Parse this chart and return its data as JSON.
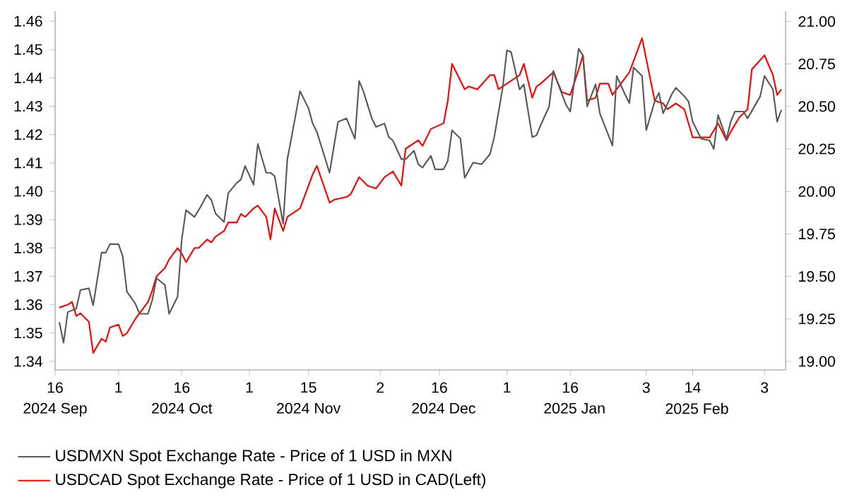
{
  "chart_data": {
    "type": "line",
    "legend": "bottom",
    "line_style": "solid",
    "xlim": [
      "2024-09-16",
      "2025-03-08"
    ],
    "xticks": [
      {
        "value": "2024-09-16",
        "label": "16"
      },
      {
        "value": "2024-10-01",
        "label": "1"
      },
      {
        "value": "2024-10-16",
        "label": "16"
      },
      {
        "value": "2024-11-01",
        "label": "1"
      },
      {
        "value": "2024-11-15",
        "label": "15"
      },
      {
        "value": "2024-12-02",
        "label": "2"
      },
      {
        "value": "2024-12-16",
        "label": "16"
      },
      {
        "value": "2025-01-01",
        "label": "1"
      },
      {
        "value": "2025-01-16",
        "label": "16"
      },
      {
        "value": "2025-02-03",
        "label": "3"
      },
      {
        "value": "2025-02-14",
        "label": "14"
      },
      {
        "value": "2025-03-03",
        "label": "3"
      }
    ],
    "x2lim": [
      "2024-09-16",
      "2025-03-08"
    ],
    "x2ticks": [
      {
        "value": "2024-09-16",
        "label": "2024 Sep"
      },
      {
        "value": "2024-10-16",
        "label": "2024 Oct"
      },
      {
        "value": "2024-11-15",
        "label": "2024 Nov"
      },
      {
        "value": "2024-12-17",
        "label": "2024 Dec"
      },
      {
        "value": "2025-01-17",
        "label": "2025 Jan"
      },
      {
        "value": "2025-02-15",
        "label": "2025 Feb"
      }
    ],
    "ylim": [
      1.337,
      1.4635
    ],
    "yticks": [
      1.34,
      1.35,
      1.36,
      1.37,
      1.38,
      1.39,
      {
        "value": 1.4,
        "label": "1.40"
      },
      1.41,
      1.42,
      1.43,
      1.44,
      1.45,
      1.46
    ],
    "y2lim": [
      18.95,
      21.06
    ],
    "y2ticks": [
      {
        "value": 19,
        "label": "19.00"
      },
      19.25,
      {
        "value": 19.5,
        "label": "19.50"
      },
      19.75,
      {
        "value": 20,
        "label": "20.00"
      },
      20.25,
      {
        "value": 20.5,
        "label": "20.50"
      },
      20.75,
      {
        "value": 21,
        "label": "21.00"
      }
    ],
    "series": [
      {
        "name": "USDMXN Spot Exchange Rate - Price of 1 USD in MXN",
        "color": "#595959",
        "axis": "y2",
        "x": [
          "2024-09-17",
          "2024-09-18",
          "2024-09-19",
          "2024-09-21",
          "2024-09-22",
          "2024-09-24",
          "2024-09-25",
          "2024-09-27",
          "2024-09-28",
          "2024-09-29",
          "2024-10-01",
          "2024-10-02",
          "2024-10-03",
          "2024-10-05",
          "2024-10-06",
          "2024-10-08",
          "2024-10-09",
          "2024-10-10",
          "2024-10-12",
          "2024-10-13",
          "2024-10-15",
          "2024-10-16",
          "2024-10-17",
          "2024-10-19",
          "2024-10-20",
          "2024-10-22",
          "2024-10-23",
          "2024-10-24",
          "2024-10-26",
          "2024-10-27",
          "2024-10-29",
          "2024-10-30",
          "2024-10-31",
          "2024-11-02",
          "2024-11-03",
          "2024-11-05",
          "2024-11-06",
          "2024-11-07",
          "2024-11-09",
          "2024-11-10",
          "2024-11-11",
          "2024-11-13",
          "2024-11-15",
          "2024-11-16",
          "2024-11-17",
          "2024-11-20",
          "2024-11-22",
          "2024-11-24",
          "2024-11-26",
          "2024-11-27",
          "2024-11-28",
          "2024-11-30",
          "2024-12-01",
          "2024-12-03",
          "2024-12-04",
          "2024-12-05",
          "2024-12-07",
          "2024-12-08",
          "2024-12-10",
          "2024-12-11",
          "2024-12-12",
          "2024-12-14",
          "2024-12-15",
          "2024-12-17",
          "2024-12-18",
          "2024-12-19",
          "2024-12-21",
          "2024-12-22",
          "2024-12-24",
          "2024-12-26",
          "2024-12-28",
          "2024-12-29",
          "2024-12-31",
          "2025-01-01",
          "2025-01-02",
          "2025-01-04",
          "2025-01-05",
          "2025-01-07",
          "2025-01-08",
          "2025-01-09",
          "2025-01-11",
          "2025-01-12",
          "2025-01-13",
          "2025-01-15",
          "2025-01-16",
          "2025-01-18",
          "2025-01-19",
          "2025-01-20",
          "2025-01-22",
          "2025-01-23",
          "2025-01-26",
          "2025-01-27",
          "2025-01-29",
          "2025-01-30",
          "2025-01-31",
          "2025-02-02",
          "2025-02-03",
          "2025-02-05",
          "2025-02-06",
          "2025-02-07",
          "2025-02-09",
          "2025-02-10",
          "2025-02-12",
          "2025-02-13",
          "2025-02-14",
          "2025-02-16",
          "2025-02-18",
          "2025-02-19",
          "2025-02-20",
          "2025-02-22",
          "2025-02-23",
          "2025-02-24",
          "2025-02-26",
          "2025-02-27",
          "2025-03-02",
          "2025-03-03",
          "2025-03-05",
          "2025-03-06",
          "2025-03-07"
        ],
        "values": [
          19.23,
          19.11,
          19.29,
          19.31,
          19.42,
          19.43,
          19.33,
          19.64,
          19.64,
          19.69,
          19.69,
          19.62,
          19.41,
          19.34,
          19.28,
          19.28,
          19.36,
          19.49,
          19.45,
          19.28,
          19.38,
          19.72,
          19.89,
          19.85,
          19.89,
          19.98,
          19.95,
          19.87,
          19.82,
          19.99,
          20.05,
          20.07,
          20.15,
          20.04,
          20.28,
          20.11,
          20.11,
          20.09,
          19.81,
          20.19,
          20.32,
          20.59,
          20.49,
          20.4,
          20.35,
          20.11,
          20.41,
          20.43,
          20.31,
          20.65,
          20.59,
          20.43,
          20.38,
          20.4,
          20.32,
          20.3,
          20.19,
          20.19,
          20.24,
          20.16,
          20.14,
          20.21,
          20.13,
          20.13,
          20.18,
          20.36,
          20.31,
          20.08,
          20.17,
          20.16,
          20.22,
          20.32,
          20.61,
          20.83,
          20.82,
          20.6,
          20.63,
          20.32,
          20.33,
          20.39,
          20.5,
          20.71,
          20.64,
          20.51,
          20.47,
          20.84,
          20.8,
          20.5,
          20.63,
          20.46,
          20.27,
          20.68,
          20.57,
          20.52,
          20.73,
          20.68,
          20.36,
          20.53,
          20.58,
          20.46,
          20.57,
          20.61,
          20.56,
          20.53,
          20.41,
          20.31,
          20.3,
          20.25,
          20.45,
          20.31,
          20.41,
          20.47,
          20.47,
          20.43,
          20.56,
          20.68,
          20.6,
          20.41,
          20.48
        ]
      },
      {
        "name": "USDCAD Spot Exchange Rate - Price of 1 USD in CAD(Left)",
        "color": "#ff0000",
        "x": [
          "2024-09-17",
          "2024-09-19",
          "2024-09-20",
          "2024-09-21",
          "2024-09-22",
          "2024-09-24",
          "2024-09-25",
          "2024-09-27",
          "2024-09-28",
          "2024-09-29",
          "2024-10-01",
          "2024-10-02",
          "2024-10-03",
          "2024-10-05",
          "2024-10-06",
          "2024-10-08",
          "2024-10-09",
          "2024-10-10",
          "2024-10-12",
          "2024-10-13",
          "2024-10-15",
          "2024-10-16",
          "2024-10-17",
          "2024-10-19",
          "2024-10-20",
          "2024-10-22",
          "2024-10-23",
          "2024-10-24",
          "2024-10-26",
          "2024-10-27",
          "2024-10-29",
          "2024-10-30",
          "2024-10-31",
          "2024-11-02",
          "2024-11-03",
          "2024-11-05",
          "2024-11-06",
          "2024-11-07",
          "2024-11-09",
          "2024-11-10",
          "2024-11-12",
          "2024-11-13",
          "2024-11-16",
          "2024-11-17",
          "2024-11-20",
          "2024-11-21",
          "2024-11-24",
          "2024-11-25",
          "2024-11-27",
          "2024-11-29",
          "2024-12-01",
          "2024-12-03",
          "2024-12-05",
          "2024-12-07",
          "2024-12-08",
          "2024-12-11",
          "2024-12-12",
          "2024-12-14",
          "2024-12-17",
          "2024-12-18",
          "2024-12-19",
          "2024-12-22",
          "2024-12-23",
          "2024-12-25",
          "2024-12-28",
          "2024-12-29",
          "2024-12-30",
          "2025-01-01",
          "2025-01-02",
          "2025-01-04",
          "2025-01-05",
          "2025-01-07",
          "2025-01-08",
          "2025-01-09",
          "2025-01-12",
          "2025-01-14",
          "2025-01-16",
          "2025-01-18",
          "2025-01-19",
          "2025-01-20",
          "2025-01-22",
          "2025-01-23",
          "2025-01-25",
          "2025-01-26",
          "2025-01-28",
          "2025-01-30",
          "2025-02-02",
          "2025-02-05",
          "2025-02-07",
          "2025-02-08",
          "2025-02-10",
          "2025-02-12",
          "2025-02-14",
          "2025-02-16",
          "2025-02-18",
          "2025-02-20",
          "2025-02-22",
          "2025-02-23",
          "2025-02-25",
          "2025-02-27",
          "2025-02-28",
          "2025-03-03",
          "2025-03-05",
          "2025-03-06",
          "2025-03-07"
        ],
        "values": [
          1.359,
          1.36,
          1.361,
          1.356,
          1.357,
          1.354,
          1.343,
          1.348,
          1.347,
          1.352,
          1.353,
          1.349,
          1.35,
          1.355,
          1.357,
          1.361,
          1.365,
          1.37,
          1.373,
          1.376,
          1.38,
          1.378,
          1.375,
          1.38,
          1.38,
          1.383,
          1.382,
          1.384,
          1.386,
          1.389,
          1.389,
          1.392,
          1.391,
          1.394,
          1.395,
          1.391,
          1.383,
          1.394,
          1.386,
          1.391,
          1.393,
          1.394,
          1.406,
          1.409,
          1.396,
          1.397,
          1.398,
          1.399,
          1.405,
          1.402,
          1.401,
          1.405,
          1.407,
          1.402,
          1.415,
          1.418,
          1.416,
          1.422,
          1.424,
          1.432,
          1.445,
          1.436,
          1.437,
          1.436,
          1.441,
          1.441,
          1.436,
          1.438,
          1.439,
          1.441,
          1.445,
          1.433,
          1.437,
          1.438,
          1.442,
          1.435,
          1.434,
          1.443,
          1.448,
          1.432,
          1.433,
          1.438,
          1.438,
          1.434,
          1.438,
          1.442,
          1.454,
          1.432,
          1.431,
          1.429,
          1.431,
          1.429,
          1.419,
          1.419,
          1.419,
          1.424,
          1.418,
          1.421,
          1.426,
          1.429,
          1.443,
          1.448,
          1.441,
          1.434,
          1.436
        ]
      }
    ]
  }
}
